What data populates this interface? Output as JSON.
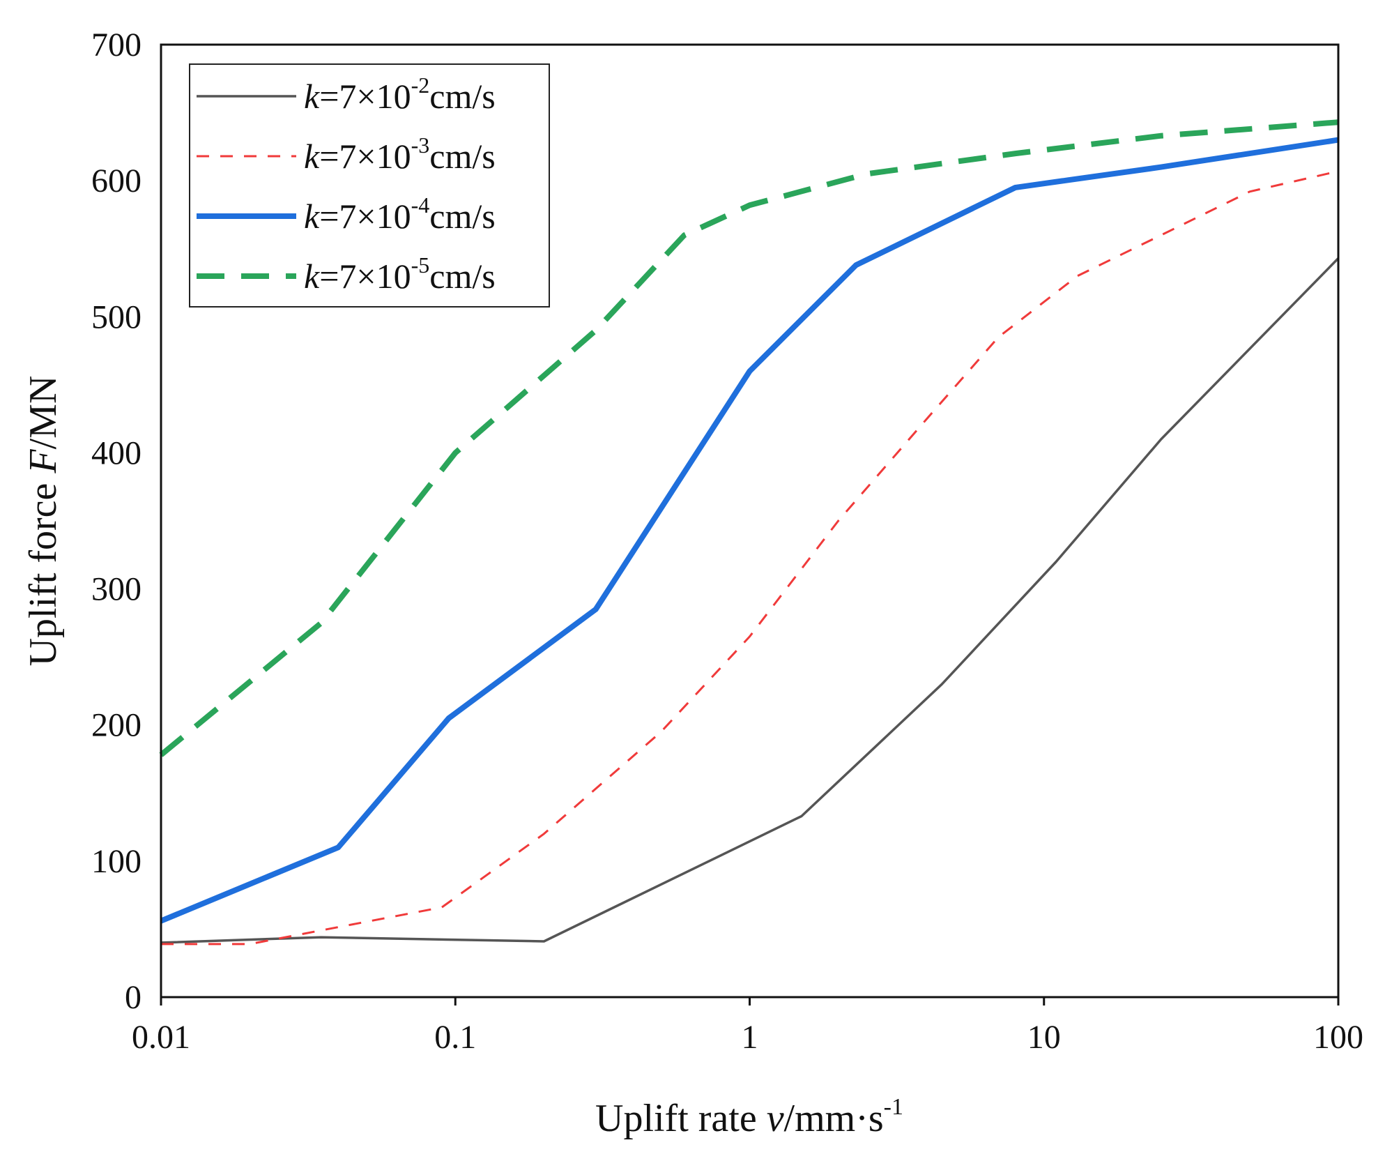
{
  "chart_data": {
    "type": "line",
    "x_scale": "log",
    "xlim": [
      0.01,
      100
    ],
    "ylim": [
      0,
      700
    ],
    "x_ticks": [
      "0.01",
      "0.1",
      "1",
      "10",
      "100"
    ],
    "y_ticks": [
      "0",
      "100",
      "200",
      "300",
      "400",
      "500",
      "600",
      "700"
    ],
    "xlabel": {
      "prefix": "Uplift rate ",
      "var": "v",
      "unit": "/mm·s",
      "sup": "-1"
    },
    "ylabel": {
      "prefix": "Uplift force ",
      "var": "F",
      "unit": "/MN"
    },
    "grid": false,
    "legend_position": "top-left",
    "series": [
      {
        "name": "k=7×10-2cm/s",
        "label": {
          "var": "k",
          "base": "=7×10",
          "sup": "-2",
          "unit": "cm/s"
        },
        "color": "#555555",
        "style": "solid",
        "x": [
          0.01,
          0.035,
          0.2,
          1.5,
          4.5,
          11,
          25,
          100
        ],
        "y": [
          40,
          44,
          41,
          133,
          230,
          320,
          410,
          543
        ]
      },
      {
        "name": "k=7×10-3cm/s",
        "label": {
          "var": "k",
          "base": "=7×10",
          "sup": "-3",
          "unit": "cm/s"
        },
        "color": "#f03a3a",
        "style": "dashed",
        "x": [
          0.01,
          0.02,
          0.09,
          0.2,
          0.5,
          1,
          2,
          4,
          7,
          13,
          25,
          50,
          100
        ],
        "y": [
          39,
          39,
          66,
          120,
          195,
          265,
          350,
          425,
          485,
          530,
          560,
          592,
          607
        ]
      },
      {
        "name": "k=7×10-4cm/s",
        "label": {
          "var": "k",
          "base": "=7×10",
          "sup": "-4",
          "unit": "cm/s"
        },
        "color": "#1f6fdc",
        "style": "solid-thick",
        "x": [
          0.01,
          0.04,
          0.095,
          0.3,
          1,
          2.3,
          8,
          25,
          100
        ],
        "y": [
          56,
          110,
          205,
          285,
          460,
          538,
          595,
          610,
          630
        ]
      },
      {
        "name": "k=7×10-5cm/s",
        "label": {
          "var": "k",
          "base": "=7×10",
          "sup": "-5",
          "unit": "cm/s"
        },
        "color": "#2aa55a",
        "style": "dashed-thick",
        "x": [
          0.01,
          0.035,
          0.1,
          0.3,
          0.6,
          1,
          2.5,
          8,
          25,
          100
        ],
        "y": [
          178,
          275,
          400,
          490,
          560,
          582,
          605,
          620,
          633,
          643
        ]
      }
    ]
  }
}
